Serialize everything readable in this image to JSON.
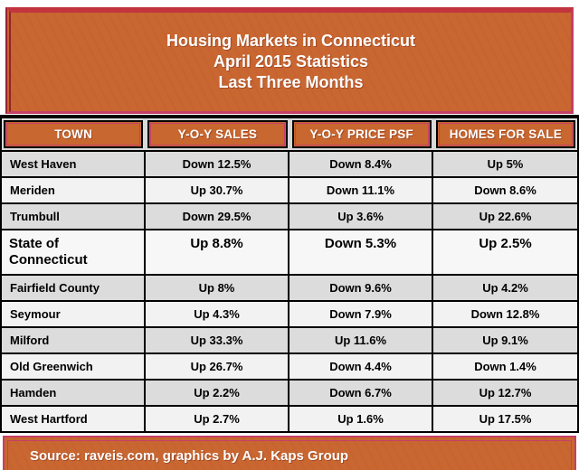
{
  "title": {
    "line1": "Housing Markets in Connecticut",
    "line2": "April 2015 Statistics",
    "line3": "Last Three Months"
  },
  "chart_data": {
    "type": "table",
    "title": "Housing Markets in Connecticut — April 2015 Statistics — Last Three Months",
    "columns": [
      "TOWN",
      "Y-O-Y SALES",
      "Y-O-Y PRICE PSF",
      "HOMES FOR SALE"
    ],
    "rows": [
      [
        "West Haven",
        "Down 12.5%",
        "Down 8.4%",
        "Up 5%"
      ],
      [
        "Meriden",
        "Up 30.7%",
        "Down 11.1%",
        "Down 8.6%"
      ],
      [
        "Trumbull",
        "Down 29.5%",
        "Up 3.6%",
        "Up 22.6%"
      ],
      [
        "State of Connecticut",
        "Up 8.8%",
        "Down 5.3%",
        "Up 2.5%"
      ],
      [
        "Fairfield County",
        "Up 8%",
        "Down 9.6%",
        "Up 4.2%"
      ],
      [
        "Seymour",
        "Up 4.3%",
        "Down 7.9%",
        "Down 12.8%"
      ],
      [
        "Milford",
        "Up 33.3%",
        "Up 11.6%",
        "Up 9.1%"
      ],
      [
        "Old Greenwich",
        "Up 26.7%",
        "Down 4.4%",
        "Down 1.4%"
      ],
      [
        "Hamden",
        "Up 2.2%",
        "Down 6.7%",
        "Up 12.7%"
      ],
      [
        "West Hartford",
        "Up 2.7%",
        "Up 1.6%",
        "Up 17.5%"
      ]
    ],
    "emphasized_row": "State of Connecticut",
    "layout_hints": {
      "grid": "black 2px cell borders",
      "row_striping": "alternating gray / near-white",
      "header_style": "orange cells, white bold text"
    }
  },
  "footer": {
    "source": "Source: raveis.com, graphics by A.J. Kaps Group"
  },
  "colors": {
    "banner_orange": "#C8672F",
    "banner_red_band": "#C2353E",
    "banner_magenta_line": "#C53F68",
    "table_border_black": "#000000",
    "row_gray": "#DCDCDC",
    "row_light": "#F2F2F2",
    "text_white": "#FFFFFF",
    "text_black": "#000000"
  }
}
